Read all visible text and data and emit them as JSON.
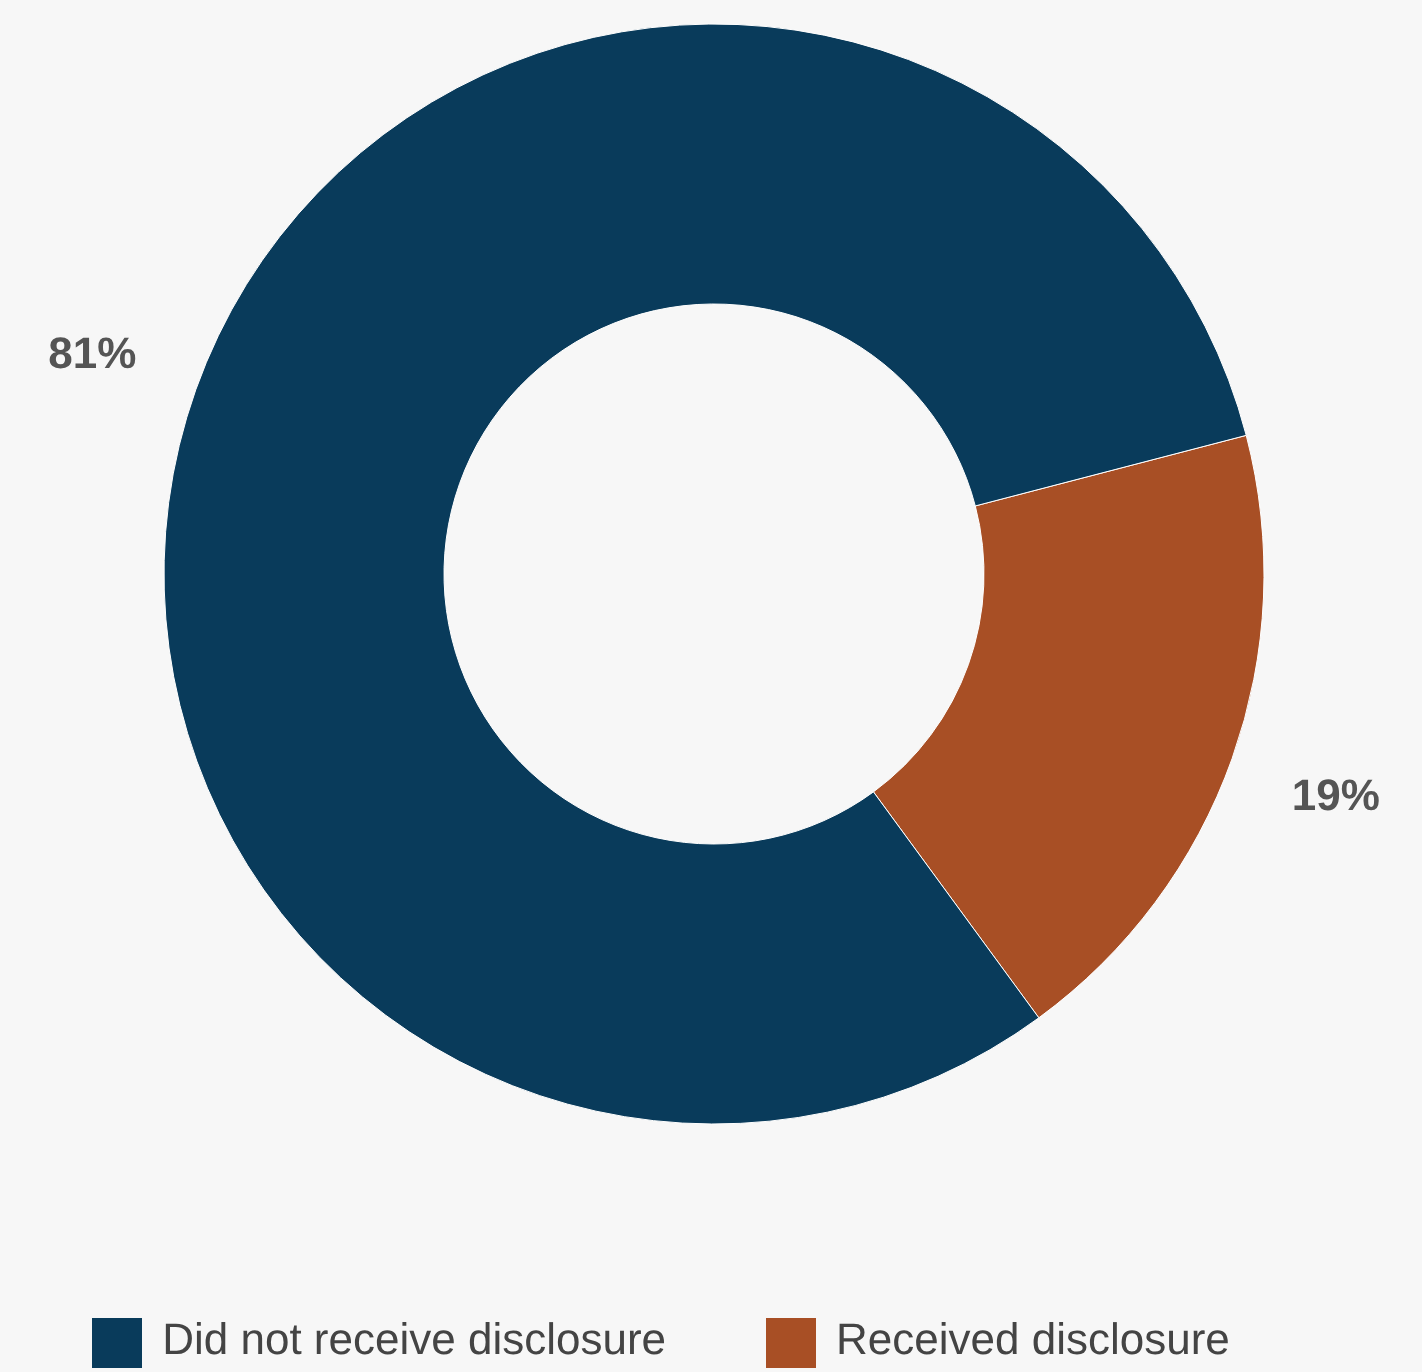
{
  "chart_data": {
    "type": "donut",
    "categories": [
      "Received disclosure",
      "Did not receive disclosure"
    ],
    "values": [
      19,
      81
    ],
    "colors": [
      "#a84f25",
      "#093b5b"
    ],
    "value_labels": [
      "19%",
      "81%"
    ],
    "legend": "bottom"
  }
}
